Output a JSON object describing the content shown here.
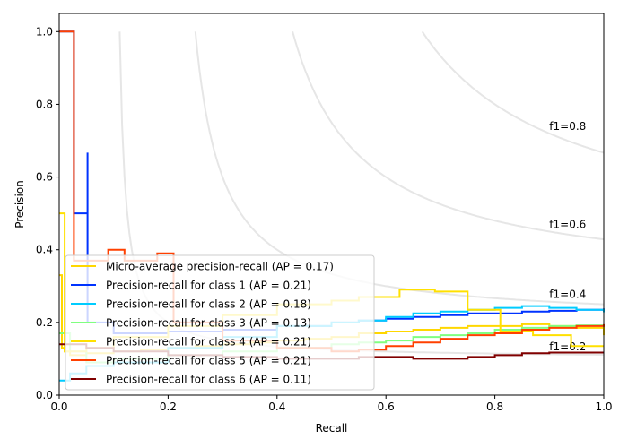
{
  "chart_data": {
    "type": "line",
    "title": "",
    "xlabel": "Recall",
    "ylabel": "Precision",
    "xlim": [
      0,
      1
    ],
    "ylim": [
      0,
      1.05
    ],
    "xticks": [
      "0.0",
      "0.2",
      "0.4",
      "0.6",
      "0.8",
      "1.0"
    ],
    "yticks": [
      "0.0",
      "0.2",
      "0.4",
      "0.6",
      "0.8",
      "1.0"
    ],
    "legend_position": "lower-left",
    "iso_f1": [
      {
        "f1": 0.2,
        "label": "f1=0.2"
      },
      {
        "f1": 0.4,
        "label": "f1=0.4"
      },
      {
        "f1": 0.6,
        "label": "f1=0.6"
      },
      {
        "f1": 0.8,
        "label": "f1=0.8"
      }
    ],
    "series": [
      {
        "name": "Micro-average precision-recall (AP = 0.17)",
        "color": "#ffd700",
        "x": [
          0,
          0.005,
          0.01,
          0.02,
          0.05,
          0.1,
          0.15,
          0.2,
          0.25,
          0.3,
          0.35,
          0.4,
          0.45,
          0.5,
          0.55,
          0.6,
          0.65,
          0.7,
          0.75,
          0.8,
          0.85,
          0.9,
          0.95,
          1.0
        ],
        "y": [
          0.33,
          0.13,
          0.12,
          0.11,
          0.115,
          0.12,
          0.125,
          0.13,
          0.135,
          0.14,
          0.145,
          0.15,
          0.155,
          0.16,
          0.17,
          0.175,
          0.18,
          0.185,
          0.19,
          0.19,
          0.195,
          0.19,
          0.185,
          0.165
        ]
      },
      {
        "name": "Precision-recall for class 1 (AP = 0.21)",
        "color": "#0033ff",
        "x": [
          0,
          0.027,
          0.027,
          0.052,
          0.052,
          0.1,
          0.2,
          0.3,
          0.4,
          0.5,
          0.55,
          0.6,
          0.65,
          0.7,
          0.75,
          0.8,
          0.85,
          0.9,
          0.95,
          1.0
        ],
        "y": [
          1.0,
          1.0,
          0.5,
          0.667,
          0.2,
          0.17,
          0.175,
          0.18,
          0.19,
          0.2,
          0.205,
          0.21,
          0.215,
          0.22,
          0.225,
          0.225,
          0.23,
          0.232,
          0.235,
          0.238
        ]
      },
      {
        "name": "Precision-recall for class 2 (AP = 0.18)",
        "color": "#00ccff",
        "x": [
          0,
          0.02,
          0.05,
          0.1,
          0.2,
          0.3,
          0.4,
          0.5,
          0.55,
          0.6,
          0.65,
          0.7,
          0.75,
          0.8,
          0.85,
          0.9,
          0.95,
          1.0
        ],
        "y": [
          0.04,
          0.06,
          0.08,
          0.09,
          0.13,
          0.16,
          0.19,
          0.2,
          0.205,
          0.215,
          0.225,
          0.23,
          0.235,
          0.24,
          0.245,
          0.24,
          0.235,
          0.228
        ]
      },
      {
        "name": "Precision-recall for class 3 (AP = 0.13)",
        "color": "#80ff80",
        "x": [
          0,
          0.02,
          0.05,
          0.1,
          0.2,
          0.3,
          0.4,
          0.5,
          0.55,
          0.6,
          0.65,
          0.7,
          0.75,
          0.8,
          0.85,
          0.9,
          0.95,
          1.0
        ],
        "y": [
          0.17,
          0.12,
          0.09,
          0.1,
          0.11,
          0.12,
          0.13,
          0.14,
          0.145,
          0.15,
          0.16,
          0.165,
          0.17,
          0.18,
          0.185,
          0.19,
          0.192,
          0.19
        ]
      },
      {
        "name": "Precision-recall for class 4 (AP = 0.21)",
        "color": "#ffe000",
        "x": [
          0,
          0.01,
          0.01,
          0.05,
          0.1,
          0.2,
          0.3,
          0.4,
          0.5,
          0.55,
          0.6,
          0.625,
          0.69,
          0.75,
          0.81,
          0.87,
          0.94,
          1.0
        ],
        "y": [
          0.5,
          0.5,
          0.12,
          0.13,
          0.16,
          0.19,
          0.22,
          0.25,
          0.26,
          0.27,
          0.27,
          0.29,
          0.285,
          0.235,
          0.175,
          0.165,
          0.135,
          0.135
        ]
      },
      {
        "name": "Precision-recall for class 5 (AP = 0.21)",
        "color": "#ff4000",
        "x": [
          0,
          0.027,
          0.027,
          0.09,
          0.12,
          0.18,
          0.21,
          0.3,
          0.4,
          0.5,
          0.55,
          0.6,
          0.65,
          0.7,
          0.75,
          0.8,
          0.85,
          0.9,
          0.95,
          1.0
        ],
        "y": [
          1.0,
          1.0,
          0.37,
          0.4,
          0.37,
          0.39,
          0.2,
          0.15,
          0.13,
          0.12,
          0.125,
          0.135,
          0.145,
          0.155,
          0.165,
          0.17,
          0.18,
          0.185,
          0.19,
          0.195
        ]
      },
      {
        "name": "Precision-recall for class 6 (AP = 0.11)",
        "color": "#800000",
        "x": [
          0,
          0.05,
          0.1,
          0.2,
          0.3,
          0.4,
          0.5,
          0.55,
          0.6,
          0.65,
          0.7,
          0.75,
          0.8,
          0.85,
          0.9,
          0.95,
          1.0
        ],
        "y": [
          0.14,
          0.13,
          0.12,
          0.11,
          0.105,
          0.1,
          0.1,
          0.105,
          0.105,
          0.1,
          0.1,
          0.105,
          0.11,
          0.115,
          0.117,
          0.117,
          0.117
        ]
      }
    ]
  }
}
